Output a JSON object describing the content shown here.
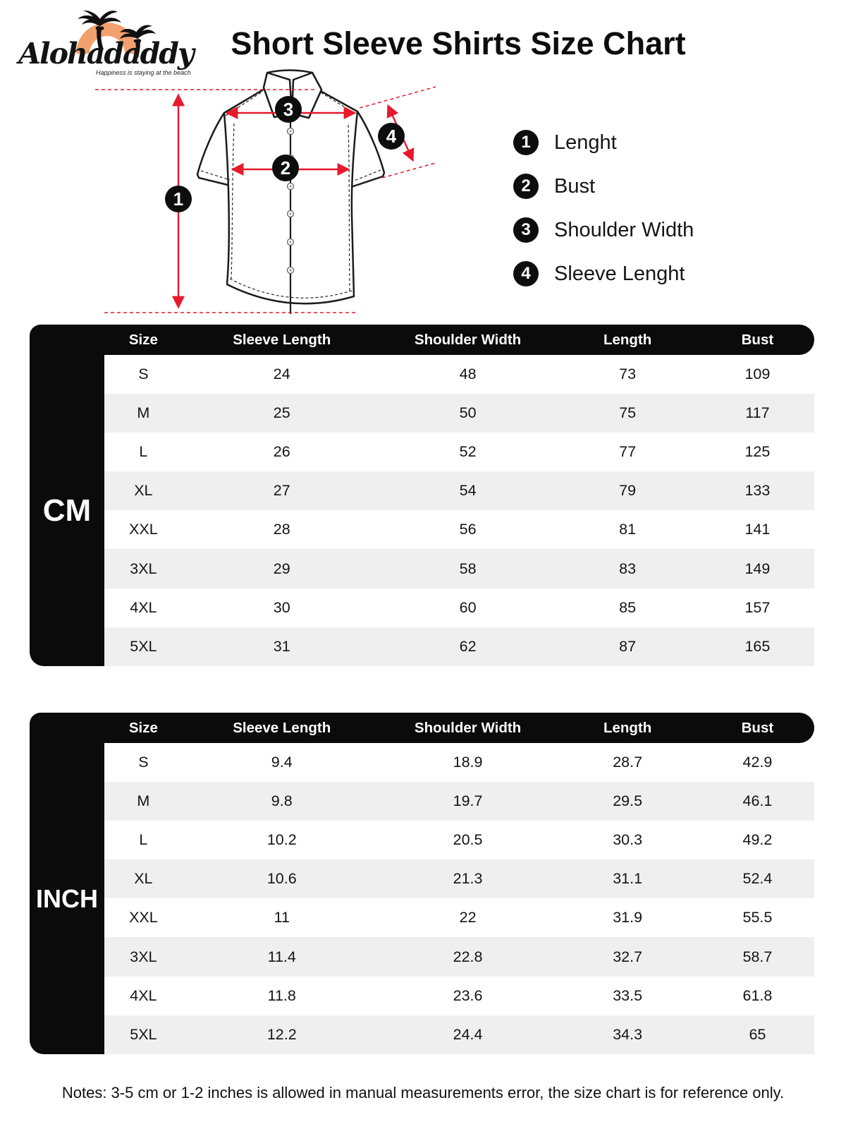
{
  "brand": {
    "name": "Alohadaddy",
    "tagline": "Happiness is staying at the beach"
  },
  "title": "Short Sleeve Shirts Size Chart",
  "legend": [
    {
      "num": "1",
      "label": "Lenght"
    },
    {
      "num": "2",
      "label": "Bust"
    },
    {
      "num": "3",
      "label": "Shoulder Width"
    },
    {
      "num": "4",
      "label": "Sleeve Lenght"
    }
  ],
  "tables": [
    {
      "unit": "CM",
      "columns": [
        "Size",
        "Sleeve Length",
        "Shoulder Width",
        "Length",
        "Bust"
      ],
      "rows": [
        [
          "S",
          "24",
          "48",
          "73",
          "109"
        ],
        [
          "M",
          "25",
          "50",
          "75",
          "117"
        ],
        [
          "L",
          "26",
          "52",
          "77",
          "125"
        ],
        [
          "XL",
          "27",
          "54",
          "79",
          "133"
        ],
        [
          "XXL",
          "28",
          "56",
          "81",
          "141"
        ],
        [
          "3XL",
          "29",
          "58",
          "83",
          "149"
        ],
        [
          "4XL",
          "30",
          "60",
          "85",
          "157"
        ],
        [
          "5XL",
          "31",
          "62",
          "87",
          "165"
        ]
      ]
    },
    {
      "unit": "INCH",
      "columns": [
        "Size",
        "Sleeve Length",
        "Shoulder Width",
        "Length",
        "Bust"
      ],
      "rows": [
        [
          "S",
          "9.4",
          "18.9",
          "28.7",
          "42.9"
        ],
        [
          "M",
          "9.8",
          "19.7",
          "29.5",
          "46.1"
        ],
        [
          "L",
          "10.2",
          "20.5",
          "30.3",
          "49.2"
        ],
        [
          "XL",
          "10.6",
          "21.3",
          "31.1",
          "52.4"
        ],
        [
          "XXL",
          "11",
          "22",
          "31.9",
          "55.5"
        ],
        [
          "3XL",
          "11.4",
          "22.8",
          "32.7",
          "58.7"
        ],
        [
          "4XL",
          "11.8",
          "23.6",
          "33.5",
          "61.8"
        ],
        [
          "5XL",
          "12.2",
          "24.4",
          "34.3",
          "65"
        ]
      ]
    }
  ],
  "notes": "Notes: 3-5 cm or 1-2 inches is allowed in manual measurements error, the size chart is for reference only.",
  "colors": {
    "accent_red": "#e8192c",
    "row_alt_gray": "#efefef",
    "table_black": "#0b0b0b",
    "logo_orange": "#f2a06e"
  }
}
